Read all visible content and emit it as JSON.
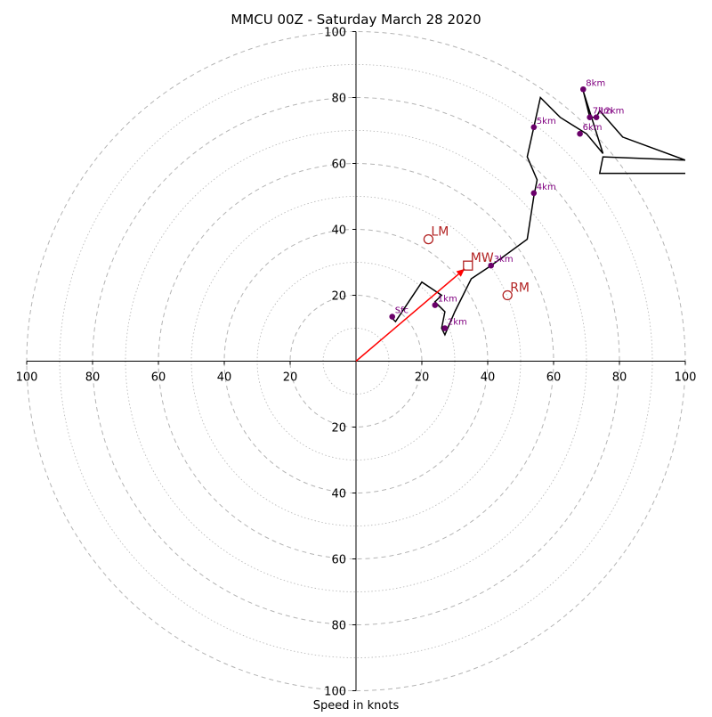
{
  "chart_data": {
    "type": "scatter",
    "subtype": "hodograph",
    "title": "MMCU 00Z - Saturday March 28 2020",
    "xlabel": "Speed in knots",
    "ylabel": "",
    "xlim": [
      -100,
      100
    ],
    "ylim": [
      -100,
      100
    ],
    "ring_step_major": 20,
    "ring_step_minor": 10,
    "x_ticks": [
      "100",
      "80",
      "60",
      "40",
      "20",
      "20",
      "40",
      "60",
      "80",
      "100"
    ],
    "y_ticks": [
      "100",
      "80",
      "60",
      "40",
      "20",
      "20",
      "40",
      "60",
      "80",
      "100"
    ],
    "trace": {
      "x": [
        11,
        12,
        20,
        26,
        24,
        26,
        27,
        26,
        27,
        30,
        35,
        41,
        52,
        54,
        55,
        52,
        54,
        56,
        62,
        70,
        75,
        69,
        71,
        73,
        74,
        81,
        100,
        75,
        74,
        100
      ],
      "y": [
        13,
        12,
        24,
        20,
        18,
        16,
        15,
        10,
        8,
        15,
        25,
        29,
        37,
        50,
        55,
        62,
        71,
        80,
        74,
        69,
        63,
        82,
        74,
        74,
        76,
        68,
        61,
        62,
        57,
        57
      ]
    },
    "height_labels": [
      {
        "label": "Sfc",
        "x": 11,
        "y": 13.5
      },
      {
        "label": "1km",
        "x": 24,
        "y": 17
      },
      {
        "label": "2km",
        "x": 27,
        "y": 10
      },
      {
        "label": "3km",
        "x": 41,
        "y": 29
      },
      {
        "label": "4km",
        "x": 54,
        "y": 51
      },
      {
        "label": "5km",
        "x": 54,
        "y": 71
      },
      {
        "label": "6km",
        "x": 68,
        "y": 69
      },
      {
        "label": "7km",
        "x": 71,
        "y": 74
      },
      {
        "label": "8km",
        "x": 69,
        "y": 82.5
      },
      {
        "label": "12km",
        "x": 73,
        "y": 74
      }
    ],
    "storm_motion": [
      {
        "label": "LM",
        "x": 22,
        "y": 37,
        "marker": "circle"
      },
      {
        "label": "MW",
        "x": 34,
        "y": 29,
        "marker": "square"
      },
      {
        "label": "RM",
        "x": 46,
        "y": 20,
        "marker": "circle"
      }
    ],
    "shear_vector": {
      "x0": 0,
      "y0": 0,
      "x1": 33,
      "y1": 28
    },
    "colors": {
      "trace": "#000000",
      "height_point": "#6a006a",
      "height_label": "#800080",
      "storm_motion": "#b22222",
      "shear_arrow": "#ff0000",
      "ring": "#b4b4b4",
      "axis": "#000000"
    },
    "grid": true,
    "legend": "none"
  }
}
